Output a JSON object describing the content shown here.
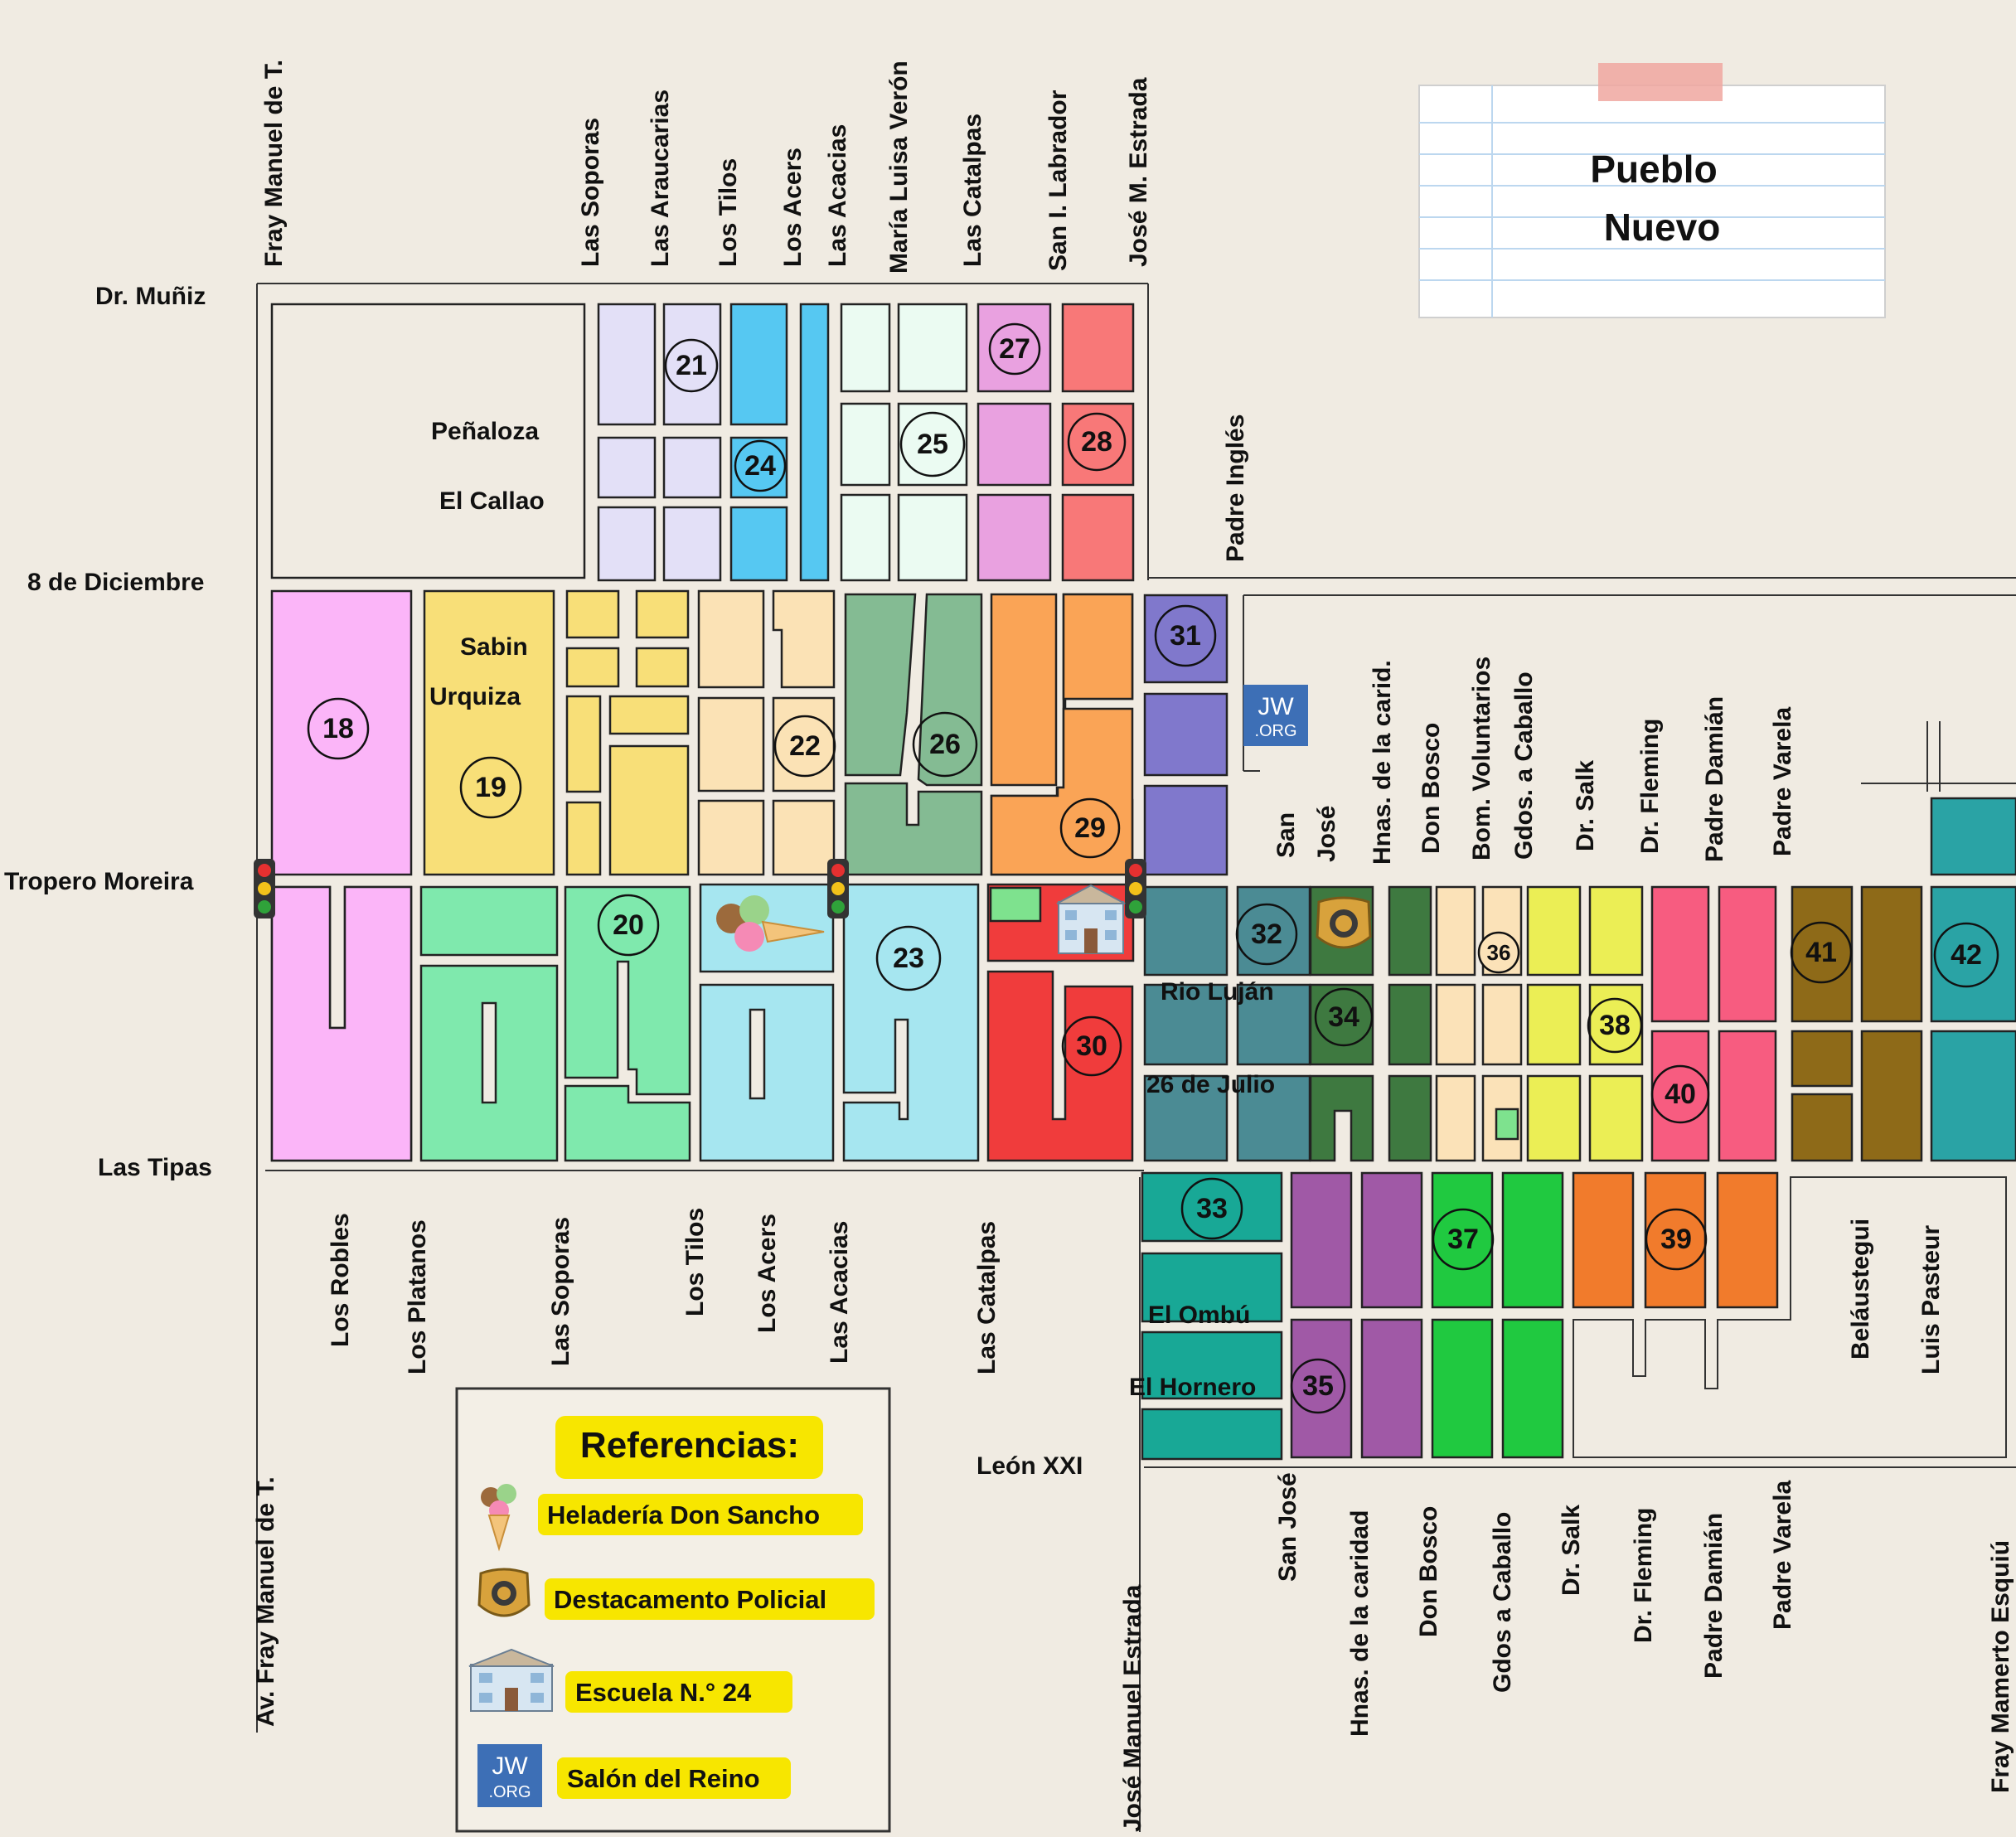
{
  "title": {
    "line1": "Pueblo",
    "line2": "Nuevo"
  },
  "streets": {
    "dr_muniz": "Dr. Muñiz",
    "penaloza": "Peñaloza",
    "el_callao": "El Callao",
    "ocho_diciembre": "8 de Diciembre",
    "sabin": "Sabin",
    "urquiza": "Urquiza",
    "tropero_moreira": "Tropero Moreira",
    "las_tipas": "Las Tipas",
    "rio_lujan": "Rio Luján",
    "veintiseis_julio": "26 de Julio",
    "el_ombu": "El Ombú",
    "el_hornero": "El Hornero",
    "leon_xxi": "León XXI",
    "fray_manuel_top": "Fray Manuel de T.",
    "las_soporas_top": "Las Soporas",
    "las_araucarias": "Las Araucarias",
    "los_tilos_top": "Los Tilos",
    "los_acers_top": "Los Acers",
    "las_acacias_top": "Las Acacias",
    "maria_luisa_veron": "María Luisa Verón",
    "las_catalpas_top": "Las Catalpas",
    "san_i_labrador": "San I. Labrador",
    "jose_m_estrada": "José M. Estrada",
    "padre_ingles": "Padre Inglés",
    "san_jose_mid_1": "San",
    "san_jose_mid_2": "José",
    "hnas_carid_mid": "Hnas. de la carid.",
    "don_bosco_mid": "Don Bosco",
    "bom_voluntarios": "Bom. Voluntarios",
    "gdos_caballo_mid": "Gdos. a Caballo",
    "dr_salk_mid": "Dr. Salk",
    "dr_fleming_mid": "Dr. Fleming",
    "padre_damian_mid": "Padre Damián",
    "padre_varela_mid": "Padre Varela",
    "los_robles": "Los Robles",
    "los_platanos": "Los Platanos",
    "las_soporas_bot": "Las Soporas",
    "los_tilos_bot": "Los Tilos",
    "los_acers_bot": "Los Acers",
    "las_acacias_bot": "Las Acacias",
    "las_catalpas_bot": "Las Catalpas",
    "belaustegui": "Beláustegui",
    "luis_pasteur": "Luis Pasteur",
    "av_fray_manuel": "Av. Fray Manuel de T.",
    "jose_manuel_estrada": "José Manuel Estrada",
    "san_jose_bot": "San José",
    "hnas_caridad_bot": "Hnas. de la caridad",
    "don_bosco_bot": "Don Bosco",
    "gdos_caballo_bot": "Gdos a Caballo",
    "dr_salk_bot": "Dr. Salk",
    "dr_fleming_bot": "Dr. Fleming",
    "padre_damian_bot": "Padre Damián",
    "padre_varela_bot": "Padre Varela",
    "fray_mamerto": "Fray Mamerto Esquiú"
  },
  "territories": [
    "18",
    "19",
    "20",
    "21",
    "22",
    "23",
    "24",
    "25",
    "26",
    "27",
    "28",
    "29",
    "30",
    "31",
    "32",
    "33",
    "34",
    "35",
    "36",
    "37",
    "38",
    "39",
    "40",
    "41",
    "42"
  ],
  "jw_logo": {
    "line1": "JW",
    "line2": ".ORG"
  },
  "legend": {
    "title": "Referencias:",
    "items": [
      {
        "icon": "ice-cream-icon",
        "label": "Heladería Don Sancho"
      },
      {
        "icon": "police-badge-icon",
        "label": "Destacamento Policial"
      },
      {
        "icon": "school-icon",
        "label": "Escuela N.° 24"
      },
      {
        "icon": "jw-org-icon",
        "label": "Salón del Reino"
      }
    ]
  },
  "colors": {
    "background": "#f0ebe2",
    "lavender": "#e3e0f7",
    "sky_blue": "#56c8f2",
    "mint": "#ebfbf2",
    "orchid": "#e9a1e0",
    "salmon": "#f87878",
    "pink": "#fbb5f8",
    "yellow": "#f8df78",
    "peach": "#fbe2b5",
    "sage": "#84bb93",
    "orange": "#faa456",
    "indigo": "#8078cc",
    "seafoam": "#7fe9ad",
    "light_aqua": "#a6e6f0",
    "red": "#f03c3c",
    "slate_teal": "#4b8b94",
    "teal": "#18a896",
    "forest": "#3e7940",
    "purple": "#a059a6",
    "cream": "#fbe2b8",
    "green": "#20c940",
    "lime_yellow": "#ebee55",
    "orange_red": "#f17b2c",
    "rose": "#f75c80",
    "olive_brown": "#8e6a18",
    "dark_cyan": "#2aa3a5",
    "legend_highlight": "#f7e600",
    "jw_blue": "#3d6fb6"
  }
}
